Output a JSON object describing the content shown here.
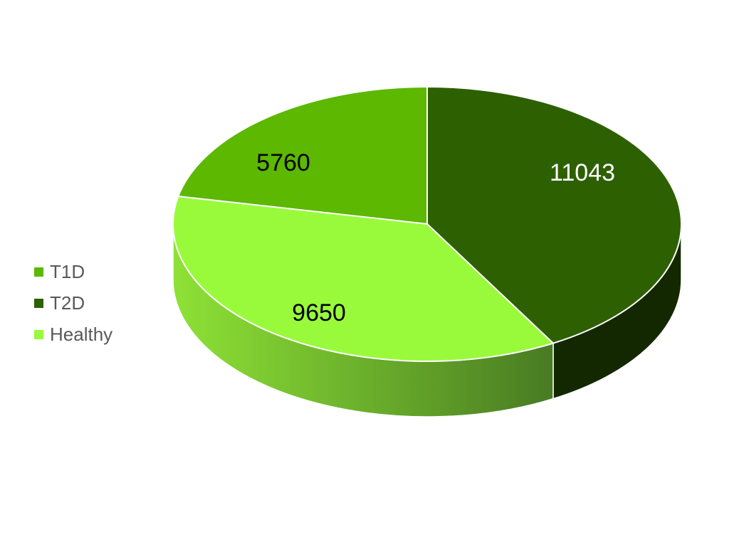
{
  "chart_data": {
    "type": "pie",
    "title": "",
    "three_d": true,
    "legend_position": "left",
    "series": [
      {
        "name": "T1D",
        "value": 5760,
        "color": "#5cb800",
        "label_color": "#000000"
      },
      {
        "name": "T2D",
        "value": 11043,
        "color": "#2d6000",
        "label_color": "#ffffff"
      },
      {
        "name": "Healthy",
        "value": 9650,
        "color": "#99fa3c",
        "label_color": "#000000"
      }
    ]
  }
}
